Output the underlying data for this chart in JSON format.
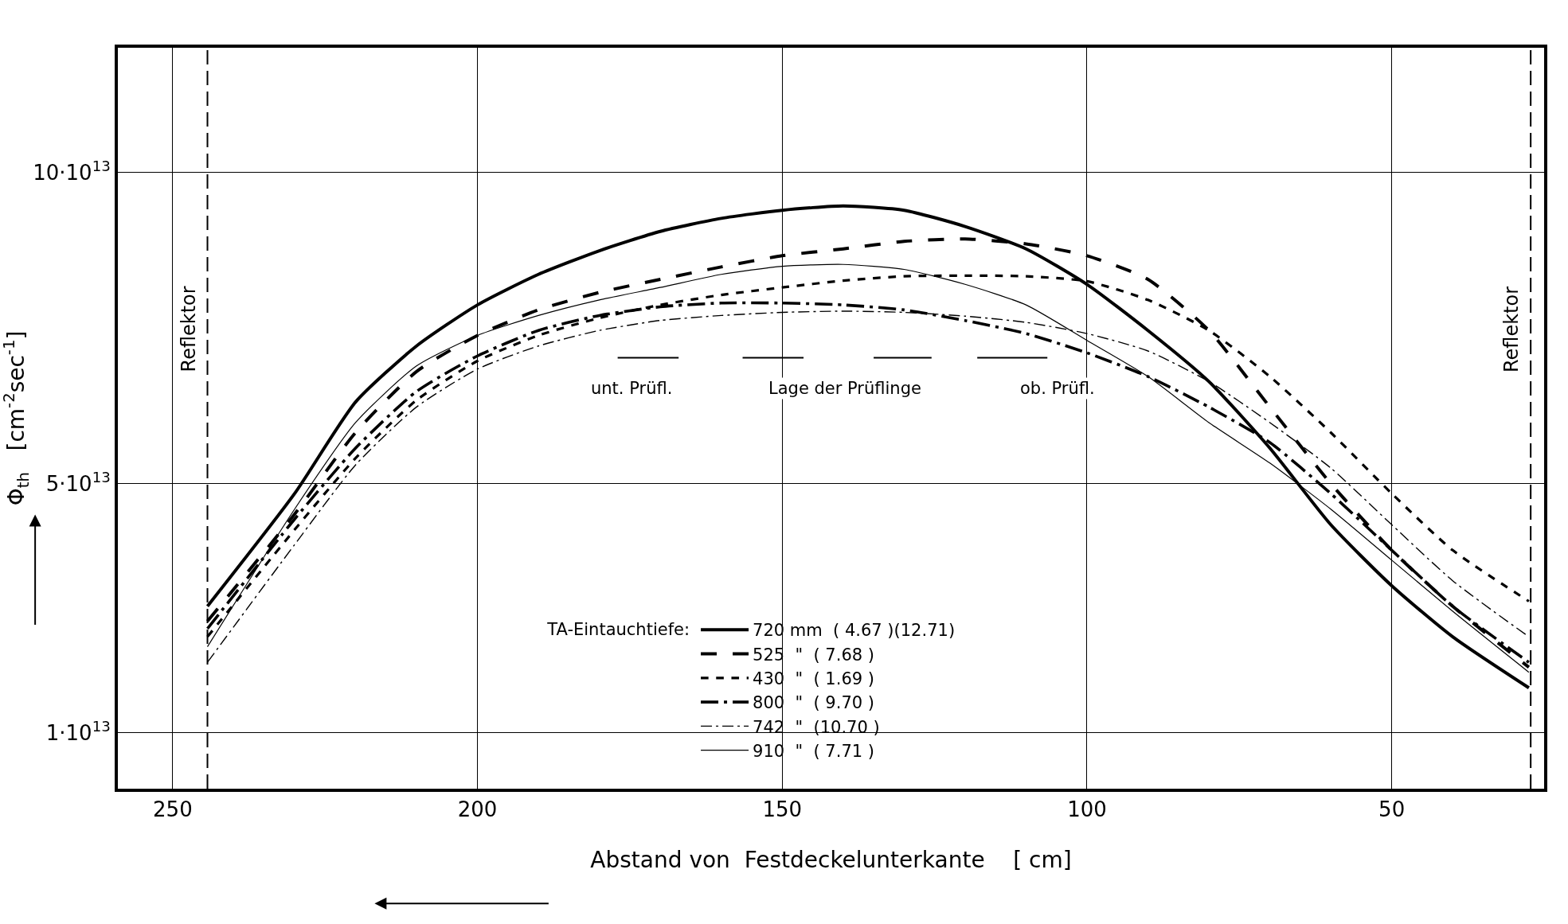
{
  "chart_data": {
    "type": "line",
    "xlabel": "Abstand von  Festdeckelunterkante    [ cm]",
    "ylabel": "Φ$_{th}$   [cm$^{-2}$sec$^{-1}$]",
    "legend_title": "TA-Eintauchtiefe:",
    "x": [
      244.3,
      230,
      220,
      210,
      200,
      190,
      180,
      170,
      160,
      150,
      140,
      130,
      120,
      110,
      100,
      90,
      80,
      70,
      60,
      50,
      40,
      27.5
    ],
    "series": [
      {
        "name": "720 mm  ( 4.67 )(12.71)",
        "color": "#000000",
        "line_style": "solid",
        "values": [
          30300000000000.0,
          48400000000000.0,
          63100000000000.0,
          72100000000000.0,
          78700000000000.0,
          83600000000000.0,
          87400000000000.0,
          90500000000000.0,
          92600000000000.0,
          93900000000000.0,
          94600000000000.0,
          93900000000000.0,
          91300000000000.0,
          87700000000000.0,
          82000000000000.0,
          74600000000000.0,
          66400000000000.0,
          55700000000000.0,
          43400000000000.0,
          33600000000000.0,
          25400000000000.0,
          17200000000000.0
        ]
      },
      {
        "name": "525  \"  ( 7.68 )",
        "color": "#000000",
        "line_style": "longdash",
        "values": [
          27900000000000.0,
          45100000000000.0,
          58200000000000.0,
          68000000000000.0,
          73800000000000.0,
          77900000000000.0,
          80700000000000.0,
          82800000000000.0,
          84800000000000.0,
          86600000000000.0,
          87700000000000.0,
          88900000000000.0,
          89300000000000.0,
          88500000000000.0,
          86600000000000.0,
          82800000000000.0,
          74600000000000.0,
          62300000000000.0,
          50000000000000.0,
          39300000000000.0,
          30300000000000.0,
          20500000000000.0
        ]
      },
      {
        "name": "430  \"  ( 1.69 )",
        "color": "#000000",
        "line_style": "dashed",
        "values": [
          25400000000000.0,
          42600000000000.0,
          54100000000000.0,
          63400000000000.0,
          69700000000000.0,
          73800000000000.0,
          76600000000000.0,
          78700000000000.0,
          80300000000000.0,
          81500000000000.0,
          82600000000000.0,
          83300000000000.0,
          83400000000000.0,
          83300000000000.0,
          82500000000000.0,
          79500000000000.0,
          74600000000000.0,
          67200000000000.0,
          58200000000000.0,
          48400000000000.0,
          39300000000000.0,
          31100000000000.0
        ]
      },
      {
        "name": "800  \"  ( 9.70 )",
        "color": "#000000",
        "line_style": "dashdot",
        "values": [
          26700000000000.0,
          44300000000000.0,
          55700000000000.0,
          64800000000000.0,
          70500000000000.0,
          74600000000000.0,
          77000000000000.0,
          78400000000000.0,
          79000000000000.0,
          79000000000000.0,
          78700000000000.0,
          77900000000000.0,
          76200000000000.0,
          74100000000000.0,
          71000000000000.0,
          67200000000000.0,
          62300000000000.0,
          56600000000000.0,
          48400000000000.0,
          39300000000000.0,
          30300000000000.0,
          21300000000000.0
        ]
      },
      {
        "name": "742  \"  (10.70 )",
        "color": "#000000",
        "line_style": "dashdot",
        "values": [
          21300000000000.0,
          40200000000000.0,
          53000000000000.0,
          62300000000000.0,
          68400000000000.0,
          72100000000000.0,
          74600000000000.0,
          76200000000000.0,
          77000000000000.0,
          77500000000000.0,
          77700000000000.0,
          77500000000000.0,
          76900000000000.0,
          75900000000000.0,
          74100000000000.0,
          71300000000000.0,
          66400000000000.0,
          59800000000000.0,
          52500000000000.0,
          43400000000000.0,
          34400000000000.0,
          25400000000000.0
        ]
      },
      {
        "name": "910  \"  ( 7.71 )",
        "color": "#000000",
        "line_style": "solid",
        "values": [
          23800000000000.0,
          45900000000000.0,
          59800000000000.0,
          68900000000000.0,
          73800000000000.0,
          77000000000000.0,
          79500000000000.0,
          81500000000000.0,
          83600000000000.0,
          84900000000000.0,
          85200000000000.0,
          84400000000000.0,
          82000000000000.0,
          78700000000000.0,
          73000000000000.0,
          67200000000000.0,
          59800000000000.0,
          53300000000000.0,
          45900000000000.0,
          37700000000000.0,
          29500000000000.0,
          19700000000000.0
        ]
      },
      {
        "color": "#000000",
        "line_style": "solid",
        "x": [
          177,
          167
        ],
        "values": [
          70200000000000.0,
          70200000000000.0
        ]
      },
      {
        "color": "#000000",
        "line_style": "solid",
        "x": [
          156.5,
          146.5
        ],
        "values": [
          70200000000000.0,
          70200000000000.0
        ]
      },
      {
        "color": "#000000",
        "line_style": "solid",
        "x": [
          135,
          125.5
        ],
        "values": [
          70200000000000.0,
          70200000000000.0
        ]
      },
      {
        "color": "#000000",
        "line_style": "solid",
        "x": [
          118,
          106.5
        ],
        "values": [
          70200000000000.0,
          70200000000000.0
        ]
      }
    ],
    "annotations": [
      "unt. Prüfl.",
      "Lage der Prüflinge",
      "ob. Prüfl."
    ],
    "ref_lines": [
      {
        "axis": "x",
        "value": 244.3,
        "label": "Reflektor",
        "color": "#000000",
        "line_style": "dashed"
      },
      {
        "axis": "x",
        "value": 27.2,
        "label": "Reflektor",
        "color": "#000000",
        "line_style": "dashed"
      }
    ],
    "xlim": [
      259,
      25
    ],
    "xticks": [
      250,
      200,
      150,
      100,
      50
    ],
    "ylim": [
      1000000000000.0,
      120000000000000.0
    ],
    "yticks": [
      {
        "value": 10000000000000.0,
        "label": "1·10$^{13}$"
      },
      {
        "value": 50000000000000.0,
        "label": "5·10$^{13}$"
      },
      {
        "value": 100000000000000.0,
        "label": "10·10$^{13}$"
      }
    ],
    "grid": true,
    "legend": "bottom"
  }
}
